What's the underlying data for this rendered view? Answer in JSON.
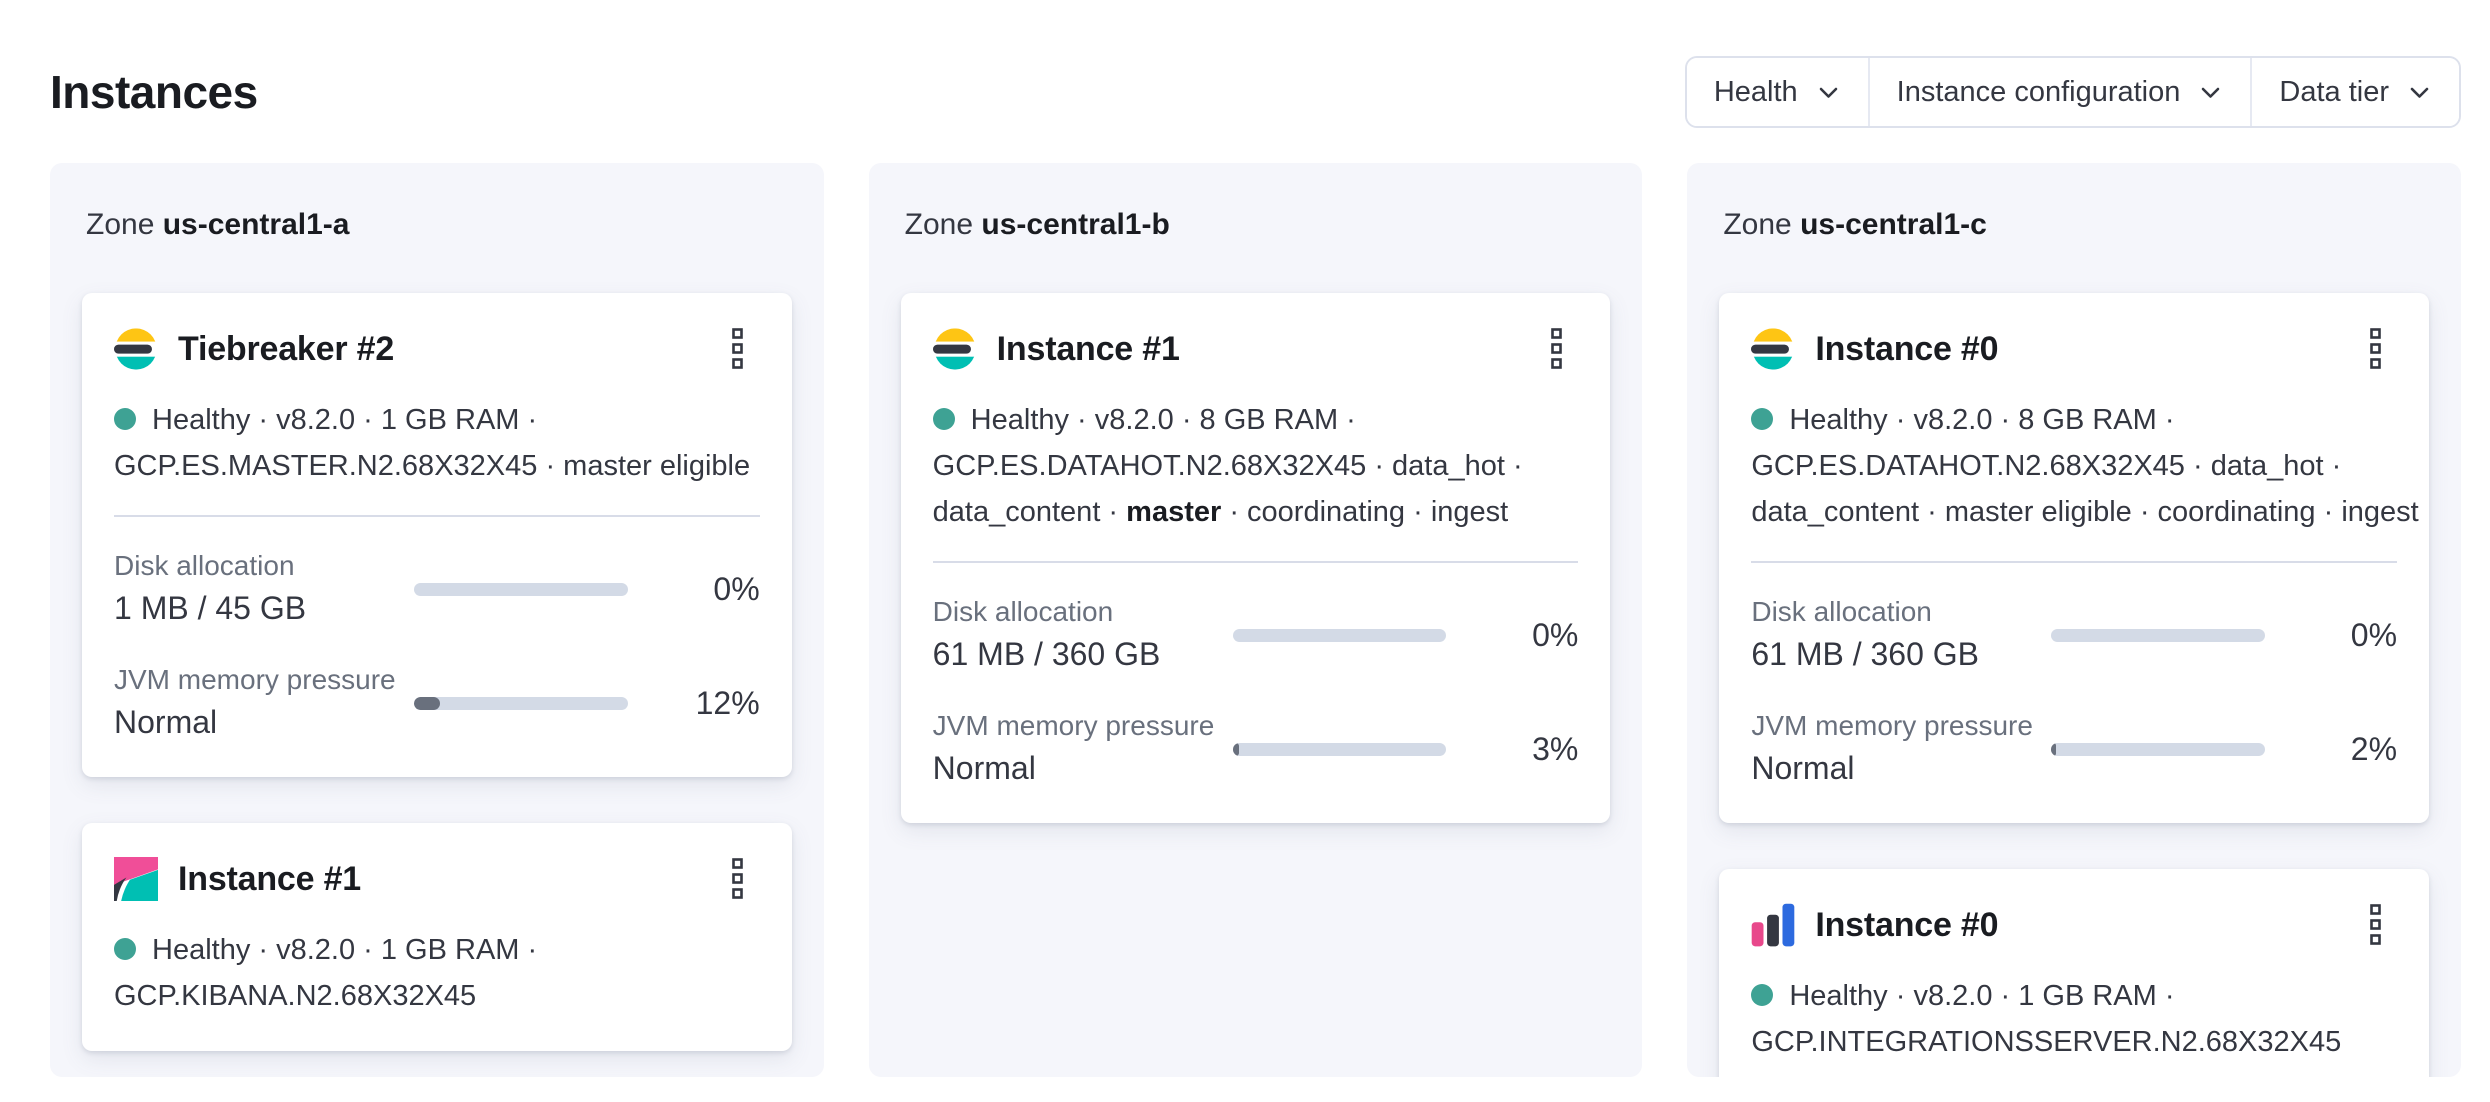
{
  "header": {
    "title": "Instances"
  },
  "filters": {
    "items": [
      {
        "label": "Health",
        "icon": "chevron-down-icon"
      },
      {
        "label": "Instance configuration",
        "icon": "chevron-down-icon"
      },
      {
        "label": "Data tier",
        "icon": "chevron-down-icon"
      }
    ]
  },
  "ui": {
    "colors": {
      "healthy_dot": "#3ea294",
      "progress_track": "#d3dae6",
      "progress_fill": "#69707d",
      "elastic_yellow": "#fec514",
      "elastic_teal": "#00bfb3",
      "elastic_pink": "#f04e98",
      "elastic_dark": "#343741",
      "integrations_blue": "#2d6adf",
      "panel_bg": "#f5f6fb"
    }
  },
  "zones": [
    {
      "label": "Zone",
      "name": "us-central1-a",
      "cards": [
        {
          "icon": "elasticsearch-logo",
          "title": "Tiebreaker #2",
          "meta_line1": "Healthy · v8.2.0 · 1 GB RAM ·",
          "meta_line2": "GCP.ES.MASTER.N2.68X32X45 · master eligible",
          "metrics": {
            "disk": {
              "label": "Disk allocation",
              "value": "1 MB / 45 GB",
              "percent": "0%",
              "fill": "0%"
            },
            "jvm": {
              "label": "JVM memory pressure",
              "value": "Normal",
              "percent": "12%",
              "fill": "12%"
            }
          }
        },
        {
          "icon": "kibana-logo",
          "title": "Instance #1",
          "meta_line1": "Healthy · v8.2.0 · 1 GB RAM ·",
          "meta_line2": "GCP.KIBANA.N2.68X32X45"
        }
      ]
    },
    {
      "label": "Zone",
      "name": "us-central1-b",
      "cards": [
        {
          "icon": "elasticsearch-logo",
          "title": "Instance #1",
          "meta_line1": "Healthy · v8.2.0 · 8 GB RAM ·",
          "meta_line2": "GCP.ES.DATAHOT.N2.68X32X45 · data_hot ·",
          "meta_line3_pre": "data_content · ",
          "meta_line3_bold": "master",
          "meta_line3_post": " · coordinating · ingest",
          "metrics": {
            "disk": {
              "label": "Disk allocation",
              "value": "61 MB / 360 GB",
              "percent": "0%",
              "fill": "0%"
            },
            "jvm": {
              "label": "JVM memory pressure",
              "value": "Normal",
              "percent": "3%",
              "fill": "3%"
            }
          }
        }
      ]
    },
    {
      "label": "Zone",
      "name": "us-central1-c",
      "cards": [
        {
          "icon": "elasticsearch-logo",
          "title": "Instance #0",
          "meta_line1": "Healthy · v8.2.0 · 8 GB RAM ·",
          "meta_line2": "GCP.ES.DATAHOT.N2.68X32X45 · data_hot ·",
          "meta_line3": "data_content · master eligible · coordinating · ingest",
          "metrics": {
            "disk": {
              "label": "Disk allocation",
              "value": "61 MB / 360 GB",
              "percent": "0%",
              "fill": "0%"
            },
            "jvm": {
              "label": "JVM memory pressure",
              "value": "Normal",
              "percent": "2%",
              "fill": "2%"
            }
          }
        },
        {
          "icon": "integrations-server-logo",
          "title": "Instance #0",
          "meta_line1": "Healthy · v8.2.0 · 1 GB RAM ·",
          "meta_line2": "GCP.INTEGRATIONSSERVER.N2.68X32X45"
        }
      ]
    }
  ]
}
